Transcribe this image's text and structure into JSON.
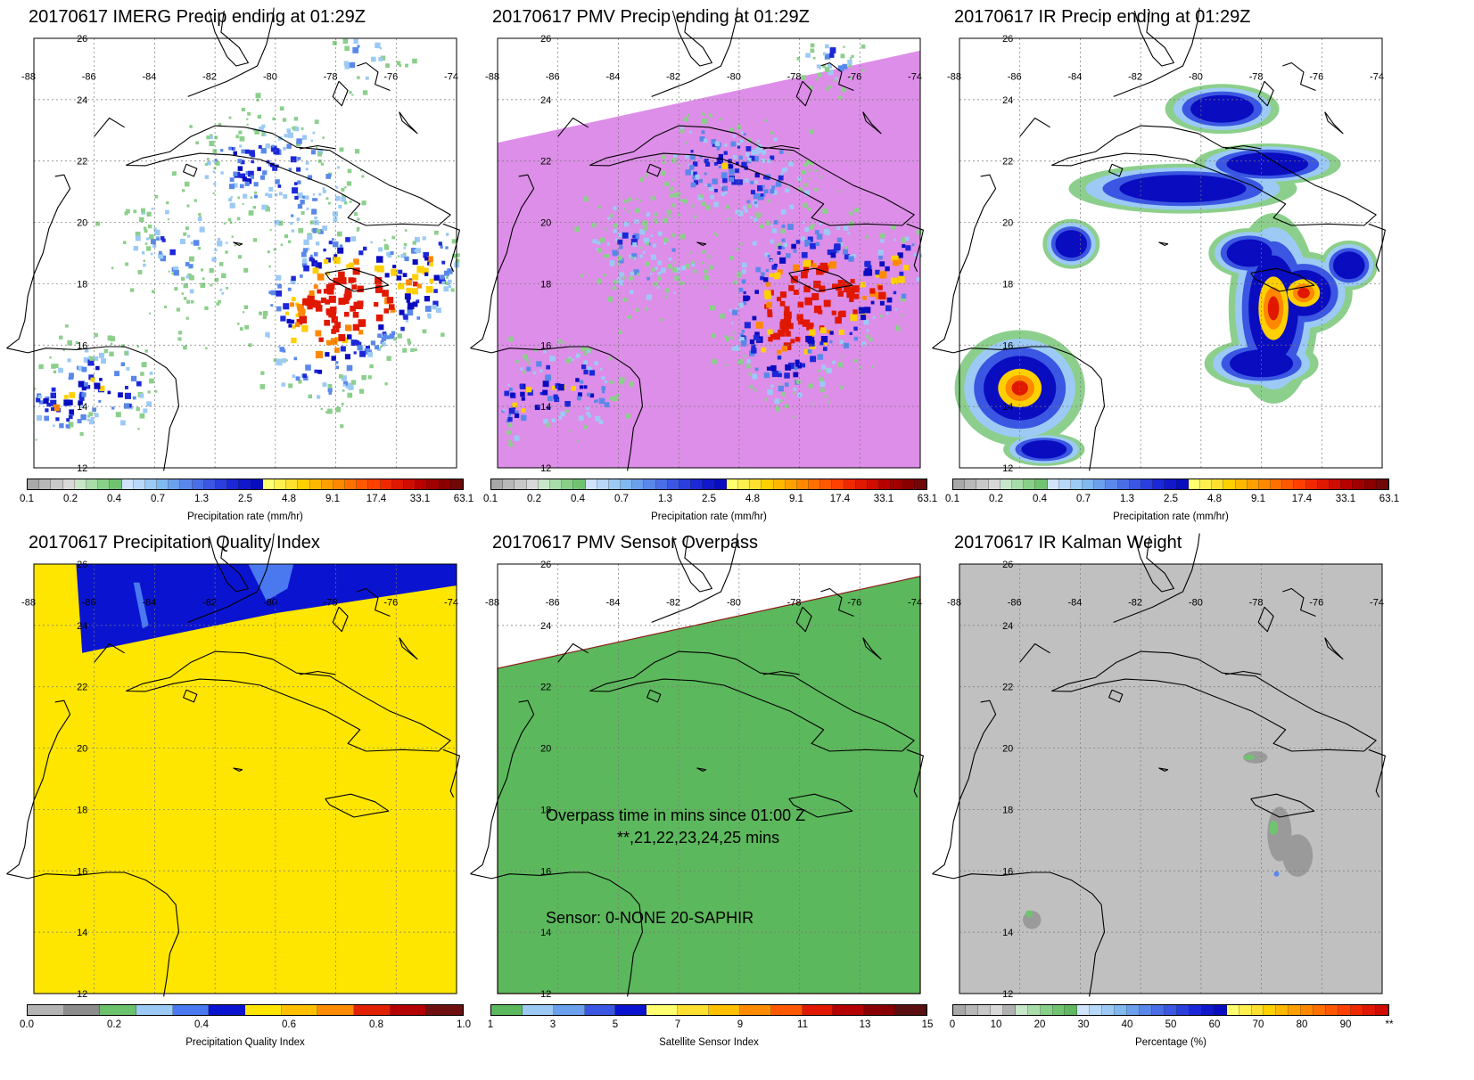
{
  "lon_labels": [
    "-88",
    "-86",
    "-84",
    "-82",
    "-80",
    "-78",
    "-76",
    "-74"
  ],
  "lat_labels": [
    "26",
    "24",
    "22",
    "20",
    "18",
    "16",
    "14",
    "12"
  ],
  "panels": [
    {
      "id": "imerg",
      "title": "20170617 IMERG Precip ending at 01:29Z",
      "map_type": "precip",
      "swath": false,
      "colorbar": {
        "label": "Precipitation rate (mm/hr)",
        "ticks": [
          "0.1",
          "0.2",
          "0.4",
          "0.7",
          "1.3",
          "2.5",
          "4.8",
          "9.1",
          "17.4",
          "33.1",
          "63.1"
        ],
        "colors": [
          "#a8a8a8",
          "#b8b8b8",
          "#c8c8c8",
          "#d8d8d8",
          "#c8e6c8",
          "#a8dca8",
          "#88d088",
          "#70c470",
          "#cfe4fa",
          "#b8d8f8",
          "#9ccaf5",
          "#80b8f0",
          "#6aa0ec",
          "#5a88ea",
          "#4a6ee6",
          "#3a56e2",
          "#2a3ede",
          "#1c28d8",
          "#1018cc",
          "#0a0cc0",
          "#ffff70",
          "#fff050",
          "#ffe030",
          "#ffd000",
          "#ffb800",
          "#ffa000",
          "#ff8800",
          "#ff7000",
          "#ff5800",
          "#ff4000",
          "#f02800",
          "#e01800",
          "#d00c00",
          "#b80000",
          "#a00000",
          "#880000",
          "#700808"
        ]
      }
    },
    {
      "id": "pmv",
      "title": "20170617 PMV Precip ending at 01:29Z",
      "map_type": "precip",
      "swath": true,
      "colorbar": {
        "label": "Precipitation rate (mm/hr)",
        "ticks": [
          "0.1",
          "0.2",
          "0.4",
          "0.7",
          "1.3",
          "2.5",
          "4.8",
          "9.1",
          "17.4",
          "33.1",
          "63.1"
        ],
        "colors": [
          "#a8a8a8",
          "#b8b8b8",
          "#c8c8c8",
          "#d8d8d8",
          "#c8e6c8",
          "#a8dca8",
          "#88d088",
          "#70c470",
          "#cfe4fa",
          "#b8d8f8",
          "#9ccaf5",
          "#80b8f0",
          "#6aa0ec",
          "#5a88ea",
          "#4a6ee6",
          "#3a56e2",
          "#2a3ede",
          "#1c28d8",
          "#1018cc",
          "#0a0cc0",
          "#ffff70",
          "#fff050",
          "#ffe030",
          "#ffd000",
          "#ffb800",
          "#ffa000",
          "#ff8800",
          "#ff7000",
          "#ff5800",
          "#ff4000",
          "#f02800",
          "#e01800",
          "#d00c00",
          "#b80000",
          "#a00000",
          "#880000",
          "#700808"
        ]
      }
    },
    {
      "id": "ir",
      "title": "20170617 IR Precip ending at 01:29Z",
      "map_type": "precip_smooth",
      "swath": false,
      "colorbar": {
        "label": "Precipitation rate (mm/hr)",
        "ticks": [
          "0.1",
          "0.2",
          "0.4",
          "0.7",
          "1.3",
          "2.5",
          "4.8",
          "9.1",
          "17.4",
          "33.1",
          "63.1"
        ],
        "colors": [
          "#a8a8a8",
          "#b8b8b8",
          "#c8c8c8",
          "#d8d8d8",
          "#c8e6c8",
          "#a8dca8",
          "#88d088",
          "#70c470",
          "#cfe4fa",
          "#b8d8f8",
          "#9ccaf5",
          "#80b8f0",
          "#6aa0ec",
          "#5a88ea",
          "#4a6ee6",
          "#3a56e2",
          "#2a3ede",
          "#1c28d8",
          "#1018cc",
          "#0a0cc0",
          "#ffff70",
          "#fff050",
          "#ffe030",
          "#ffd000",
          "#ffb800",
          "#ffa000",
          "#ff8800",
          "#ff7000",
          "#ff5800",
          "#ff4000",
          "#f02800",
          "#e01800",
          "#d00c00",
          "#b80000",
          "#a00000",
          "#880000",
          "#700808"
        ]
      }
    },
    {
      "id": "pqi",
      "title": "20170617 Precipitation Quality Index",
      "map_type": "quality",
      "colorbar": {
        "label": "Precipitation Quality Index",
        "ticks": [
          "0.0",
          "0.2",
          "0.4",
          "0.6",
          "0.8",
          "1.0"
        ],
        "colors": [
          "#b4b4b4",
          "#8c8c8c",
          "#6cc26c",
          "#9ccaf5",
          "#4a78f0",
          "#0a14d0",
          "#ffe600",
          "#ffc000",
          "#ff8c00",
          "#e02000",
          "#b40000",
          "#6e1010"
        ]
      }
    },
    {
      "id": "overpass",
      "title": "20170617 PMV Sensor Overpass",
      "map_type": "overpass",
      "annotations": [
        "Overpass time in mins since 01:00 Z",
        "**,21,22,23,24,25 mins",
        "Sensor:  0-NONE 20-SAPHIR"
      ],
      "colorbar": {
        "label": "Satellite Sensor Index",
        "ticks": [
          "1",
          "3",
          "5",
          "7",
          "9",
          "11",
          "13",
          "15"
        ],
        "colors": [
          "#5cb85c",
          "#9ccaf5",
          "#6aa0ec",
          "#3a56e2",
          "#0a14d0",
          "#ffff70",
          "#ffe030",
          "#ffc000",
          "#ff8c00",
          "#ff5800",
          "#e01800",
          "#b40000",
          "#880000",
          "#5a1010"
        ]
      }
    },
    {
      "id": "kalman",
      "title": "20170617 IR Kalman Weight",
      "map_type": "kalman",
      "colorbar": {
        "label": "Percentage (%)",
        "ticks": [
          "0",
          "10",
          "20",
          "30",
          "40",
          "50",
          "60",
          "70",
          "80",
          "90",
          "**"
        ],
        "colors": [
          "#a8a8a8",
          "#b8b8b8",
          "#c8c8c8",
          "#d8d8d8",
          "#b0b0b0",
          "#c8e6c8",
          "#a8dca8",
          "#88d088",
          "#70c470",
          "#60b860",
          "#cfe4fa",
          "#b8d8f8",
          "#9ccaf5",
          "#80b8f0",
          "#6aa0ec",
          "#5a88ea",
          "#4a6ee6",
          "#3a56e2",
          "#2a3ede",
          "#1c28d8",
          "#1018cc",
          "#0a0cc0",
          "#ffff70",
          "#fff050",
          "#ffe030",
          "#ffd000",
          "#ffb800",
          "#ffa000",
          "#ff8800",
          "#ff7000",
          "#ff5800",
          "#ff4000",
          "#f02800",
          "#e01800",
          "#d00c00"
        ]
      }
    }
  ]
}
